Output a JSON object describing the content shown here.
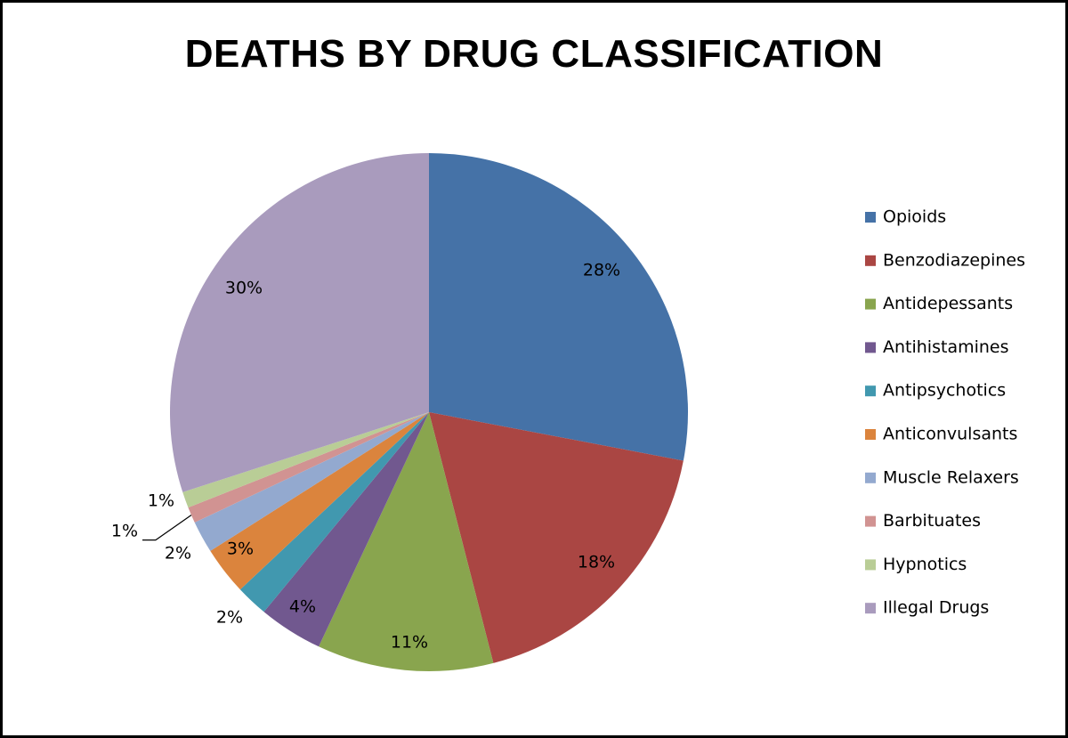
{
  "chart_data": {
    "type": "pie",
    "title": "DEATHS BY DRUG CLASSIFICATION",
    "legend_position": "right",
    "slices": [
      {
        "label": "Opioids",
        "value": 28,
        "display": "28%",
        "color": "#4572A7"
      },
      {
        "label": "Benzodiazepines",
        "value": 18,
        "display": "18%",
        "color": "#AA4643"
      },
      {
        "label": "Antidepessants",
        "value": 11,
        "display": "11%",
        "color": "#89A54E"
      },
      {
        "label": "Antihistamines",
        "value": 4,
        "display": "4%",
        "color": "#71588F"
      },
      {
        "label": "Antipsychotics",
        "value": 2,
        "display": "2%",
        "color": "#4198AF"
      },
      {
        "label": "Anticonvulsants",
        "value": 3,
        "display": "3%",
        "color": "#DB843D"
      },
      {
        "label": "Muscle Relaxers",
        "value": 2,
        "display": "2%",
        "color": "#93A9CF"
      },
      {
        "label": "Barbituates",
        "value": 1,
        "display": "1%",
        "color": "#D19392"
      },
      {
        "label": "Hypnotics",
        "value": 1,
        "display": "1%",
        "color": "#B9CD96"
      },
      {
        "label": "Illegal Drugs",
        "value": 30,
        "display": "30%",
        "color": "#A99BBD"
      }
    ]
  }
}
